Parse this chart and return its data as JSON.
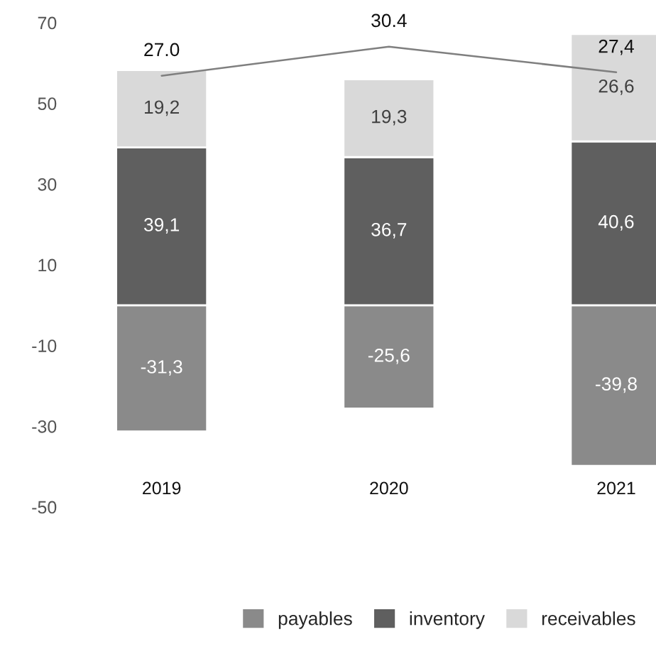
{
  "chart_data": {
    "type": "bar",
    "stacked": true,
    "categories": [
      "2019",
      "2020",
      "2021"
    ],
    "series": [
      {
        "name": "payables",
        "color": "#8a8a8a",
        "values": [
          -31.3,
          -25.6,
          -39.8
        ],
        "value_labels": [
          "-31,3",
          "-25,6",
          "-39,8"
        ]
      },
      {
        "name": "inventory",
        "color": "#5f5f5f",
        "values": [
          39.1,
          36.7,
          40.6
        ],
        "value_labels": [
          "39,1",
          "36,7",
          "40,6"
        ]
      },
      {
        "name": "receivables",
        "color": "#d9d9d9",
        "values": [
          19.2,
          19.3,
          26.6
        ],
        "value_labels": [
          "19,2",
          "19,3",
          "26,6"
        ]
      },
      {
        "type": "line",
        "axis": "y2",
        "color": "#7f7f7f",
        "values": [
          27.0,
          30.4,
          27.4
        ],
        "value_labels": [
          "27.0",
          "30.4",
          "27,4"
        ]
      }
    ],
    "ylim": [
      -50,
      70
    ],
    "yticks": [
      -50,
      -30,
      -10,
      10,
      30,
      50,
      70
    ],
    "tick_labels": "xy",
    "grid": false,
    "legend": "bottom right"
  }
}
